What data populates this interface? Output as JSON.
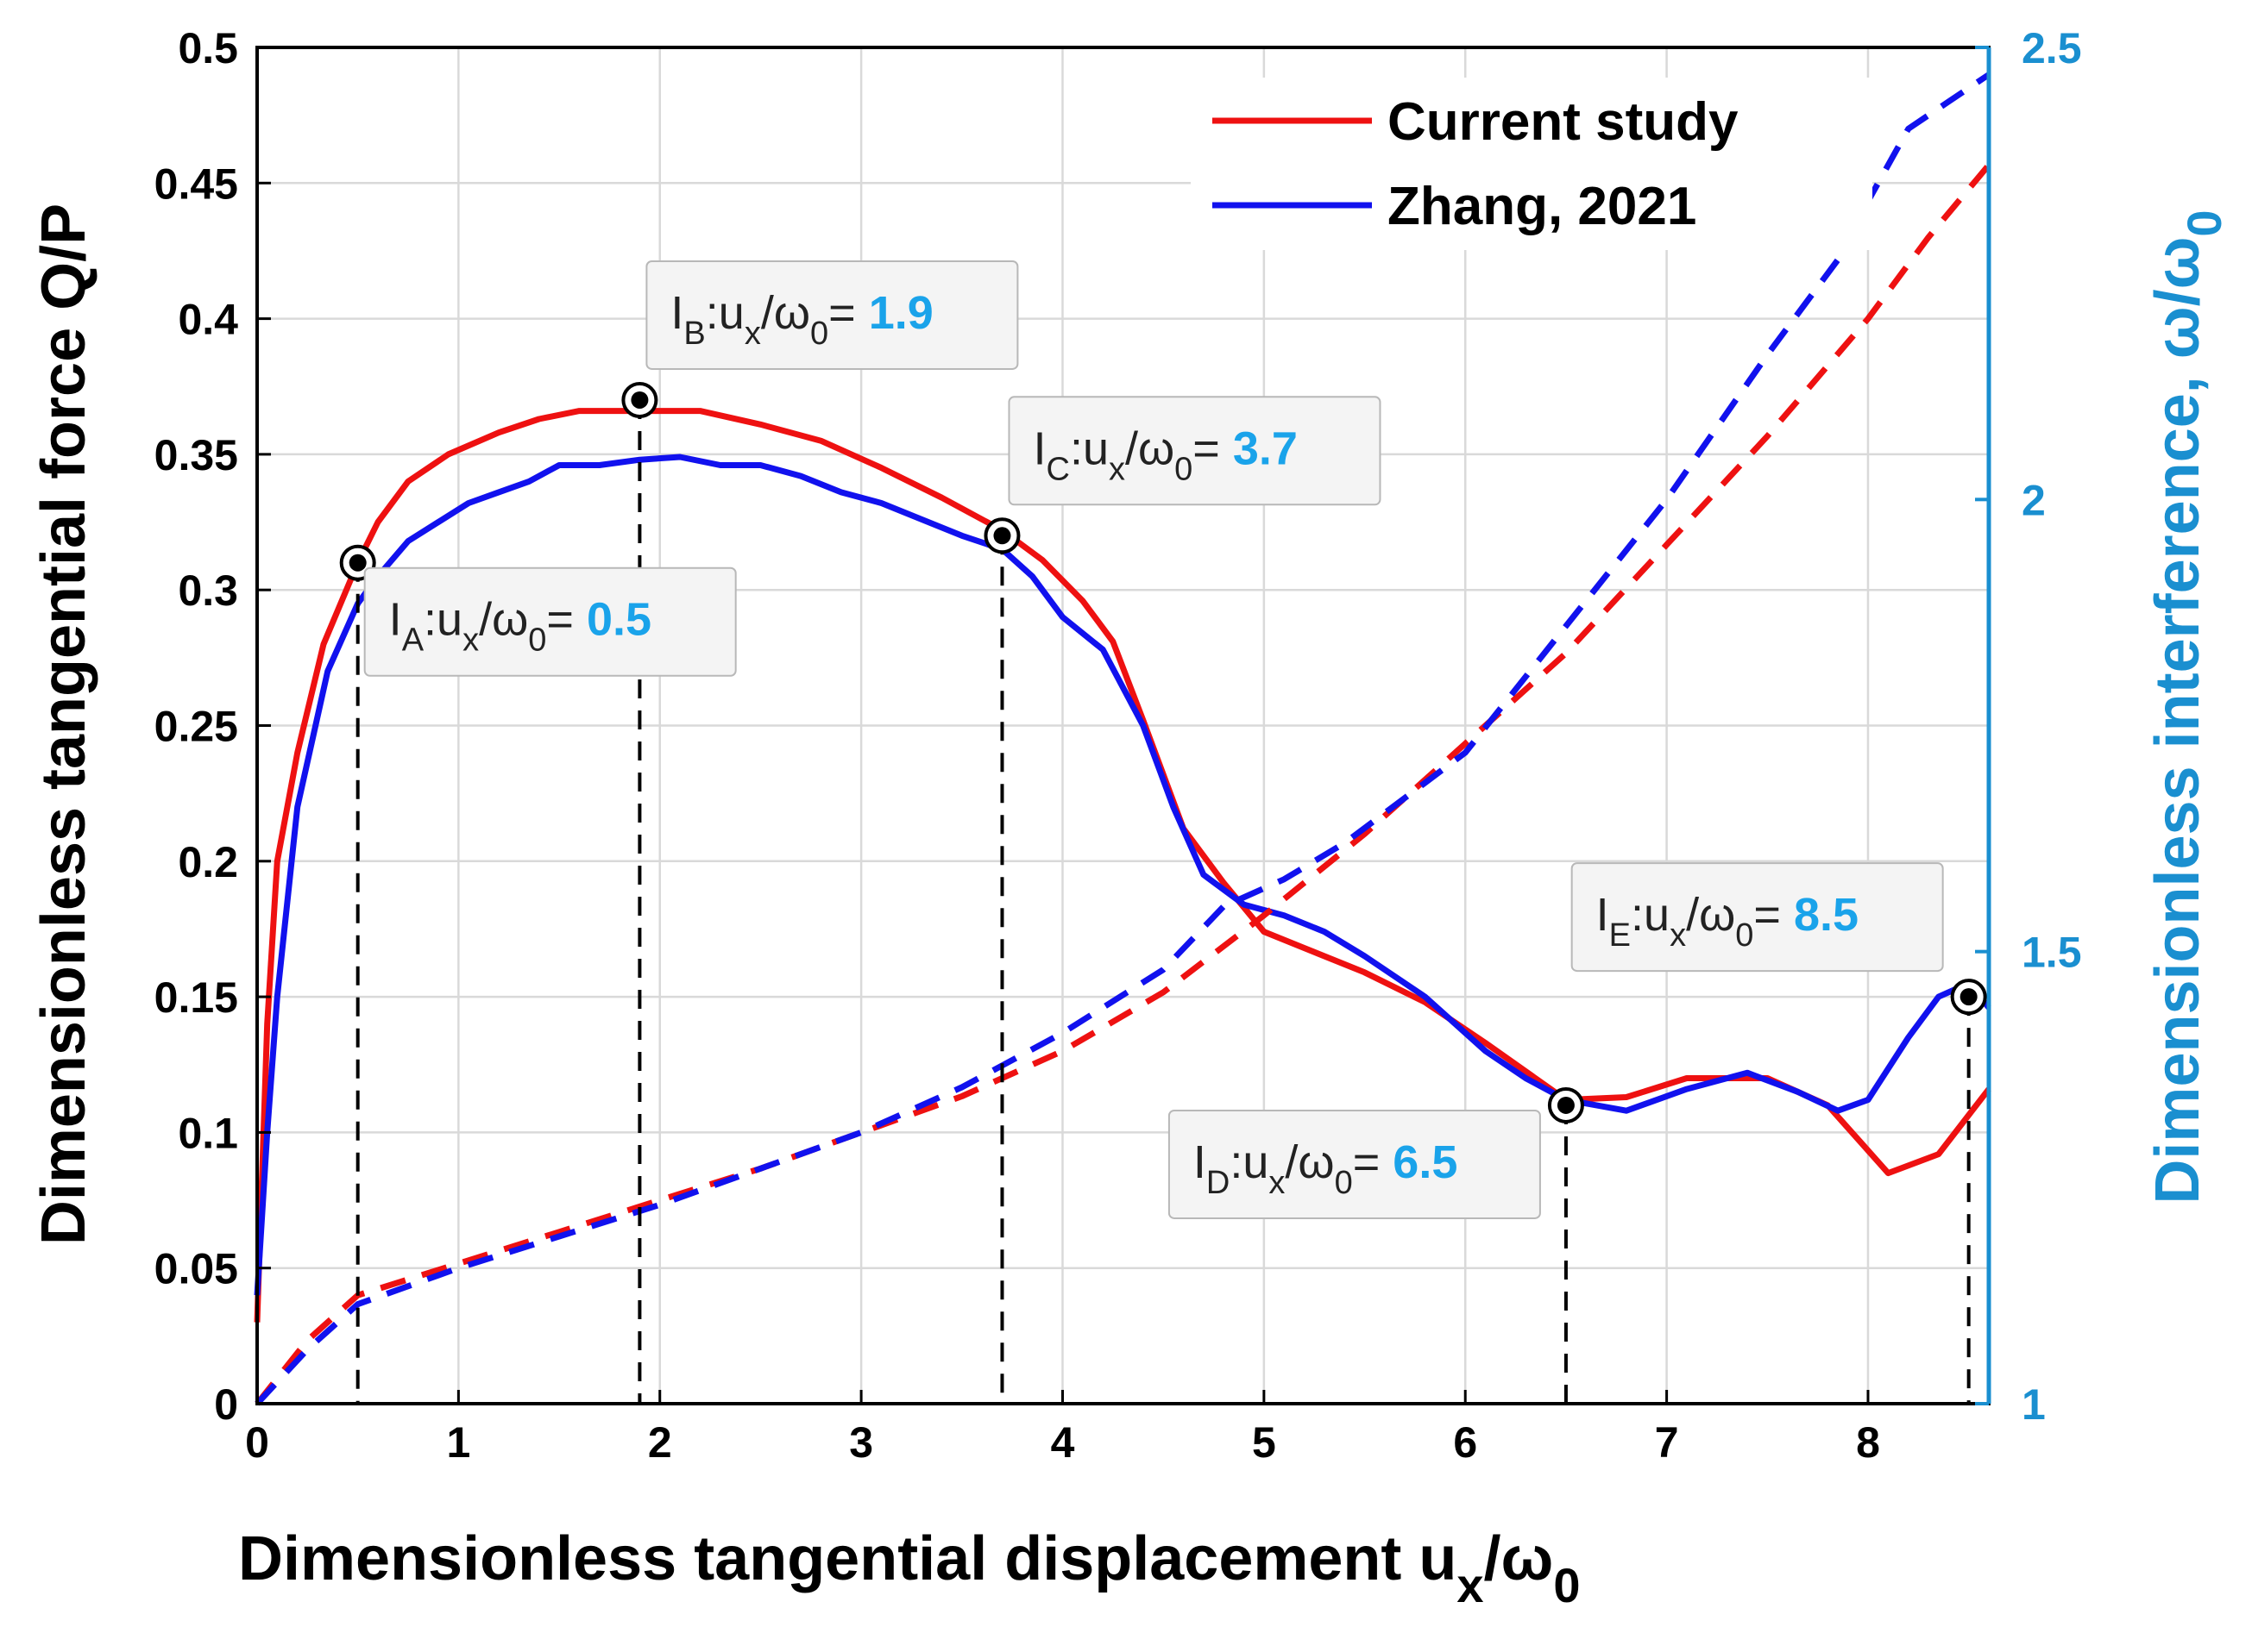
{
  "chart_data": {
    "type": "line",
    "xlabel": "Dimensionless tangential displacement u",
    "xlabel_sub": "x",
    "xlabel_tail": "/ω",
    "xlabel_tail_sub": "0",
    "ylabel": "Dimensionless tangential force Q/P",
    "y2label": "Dimensionless interference, ω/ω",
    "y2label_sub": "0",
    "xlim": [
      0,
      8.6
    ],
    "ylim": [
      0,
      0.5
    ],
    "y2lim": [
      1,
      2.5
    ],
    "xticks": [
      "0",
      "1",
      "2",
      "3",
      "4",
      "5",
      "6",
      "7",
      "8"
    ],
    "yticks": [
      "0",
      "0.05",
      "0.1",
      "0.15",
      "0.2",
      "0.25",
      "0.3",
      "0.35",
      "0.4",
      "0.45",
      "0.5"
    ],
    "y2ticks": [
      "1",
      "1.5",
      "2",
      "2.5"
    ],
    "grid": true,
    "colors": {
      "red": "#ee1111",
      "blue": "#1111ee",
      "right_axis": "#1a8fd0",
      "value": "#1aa3ea"
    },
    "legend": {
      "placement": "top-right",
      "entries": [
        "Current study",
        "Zhang, 2021"
      ]
    },
    "series": [
      {
        "name": "Current study",
        "axis": "left",
        "style": "solid",
        "color": "#ee1111",
        "x": [
          0,
          0.05,
          0.1,
          0.2,
          0.33,
          0.5,
          0.6,
          0.75,
          0.95,
          1.2,
          1.4,
          1.6,
          1.8,
          2.0,
          2.2,
          2.5,
          2.8,
          3.1,
          3.4,
          3.7,
          3.9,
          4.1,
          4.25,
          4.4,
          4.6,
          4.8,
          5.0,
          5.2,
          5.5,
          5.8,
          6.1,
          6.5,
          6.8,
          7.1,
          7.5,
          7.8,
          8.1,
          8.35,
          8.6
        ],
        "values": [
          0.03,
          0.14,
          0.2,
          0.24,
          0.28,
          0.31,
          0.325,
          0.34,
          0.35,
          0.358,
          0.363,
          0.366,
          0.366,
          0.366,
          0.366,
          0.361,
          0.355,
          0.345,
          0.334,
          0.322,
          0.311,
          0.296,
          0.281,
          0.252,
          0.212,
          0.192,
          0.174,
          0.168,
          0.159,
          0.148,
          0.133,
          0.112,
          0.113,
          0.12,
          0.12,
          0.11,
          0.085,
          0.092,
          0.116
        ]
      },
      {
        "name": "Zhang, 2021",
        "axis": "left",
        "style": "solid",
        "color": "#1111ee",
        "x": [
          0,
          0.05,
          0.1,
          0.2,
          0.35,
          0.5,
          0.6,
          0.75,
          0.9,
          1.05,
          1.2,
          1.35,
          1.5,
          1.7,
          1.9,
          2.1,
          2.3,
          2.5,
          2.7,
          2.9,
          3.1,
          3.3,
          3.5,
          3.7,
          3.85,
          4.0,
          4.2,
          4.4,
          4.55,
          4.7,
          4.9,
          5.1,
          5.3,
          5.5,
          5.8,
          6.1,
          6.3,
          6.5,
          6.8,
          7.1,
          7.4,
          7.65,
          7.85,
          8.0,
          8.2,
          8.35,
          8.5,
          8.6
        ],
        "values": [
          0.04,
          0.1,
          0.15,
          0.22,
          0.27,
          0.295,
          0.305,
          0.318,
          0.325,
          0.332,
          0.336,
          0.34,
          0.346,
          0.346,
          0.348,
          0.349,
          0.346,
          0.346,
          0.342,
          0.336,
          0.332,
          0.326,
          0.32,
          0.315,
          0.305,
          0.29,
          0.278,
          0.25,
          0.22,
          0.195,
          0.184,
          0.18,
          0.174,
          0.165,
          0.15,
          0.13,
          0.12,
          0.112,
          0.108,
          0.116,
          0.122,
          0.115,
          0.108,
          0.112,
          0.135,
          0.15,
          0.155,
          0.146
        ]
      },
      {
        "name": "Current study interference",
        "axis": "right",
        "style": "dashed",
        "color": "#ee1111",
        "x": [
          0,
          0.25,
          0.5,
          1.0,
          1.5,
          2.0,
          2.5,
          3.0,
          3.5,
          4.0,
          4.5,
          5.0,
          5.5,
          6.0,
          6.5,
          7.0,
          7.5,
          8.0,
          8.3,
          8.6
        ],
        "values": [
          1.0,
          1.07,
          1.12,
          1.155,
          1.19,
          1.225,
          1.26,
          1.3,
          1.34,
          1.39,
          1.455,
          1.54,
          1.63,
          1.73,
          1.83,
          1.95,
          2.07,
          2.2,
          2.29,
          2.37
        ]
      },
      {
        "name": "Zhang, 2021 interference",
        "axis": "right",
        "style": "dashed",
        "color": "#1111ee",
        "x": [
          0,
          0.25,
          0.5,
          1.0,
          1.5,
          2.0,
          2.5,
          3.0,
          3.5,
          4.0,
          4.5,
          4.8,
          5.1,
          5.4,
          5.7,
          6.0,
          6.5,
          7.0,
          7.5,
          7.9,
          8.0,
          8.2,
          8.4,
          8.6
        ],
        "values": [
          1.0,
          1.06,
          1.11,
          1.15,
          1.185,
          1.22,
          1.26,
          1.3,
          1.35,
          1.41,
          1.48,
          1.55,
          1.58,
          1.62,
          1.67,
          1.72,
          1.86,
          2.0,
          2.16,
          2.28,
          2.33,
          2.41,
          2.44,
          2.47
        ]
      }
    ],
    "markers": [
      {
        "label": "I",
        "sub": "A",
        "mid": ":u",
        "mid_sub": "x",
        "tail": "/ω",
        "tail_sub": "0",
        "eq": "= ",
        "value": "0.5",
        "x": 0.5,
        "y": 0.31,
        "box_side": "below-right"
      },
      {
        "label": "I",
        "sub": "B",
        "mid": ":u",
        "mid_sub": "x",
        "tail": "/ω",
        "tail_sub": "0",
        "eq": "= ",
        "value": "1.9",
        "x": 1.9,
        "y": 0.37,
        "box_side": "above-right"
      },
      {
        "label": "I",
        "sub": "C",
        "mid": ":u",
        "mid_sub": "x",
        "tail": "/ω",
        "tail_sub": "0",
        "eq": "= ",
        "value": "3.7",
        "x": 3.7,
        "y": 0.32,
        "box_side": "above-right"
      },
      {
        "label": "I",
        "sub": "D",
        "mid": ":u",
        "mid_sub": "x",
        "tail": "/ω",
        "tail_sub": "0",
        "eq": "= ",
        "value": "6.5",
        "x": 6.5,
        "y": 0.11,
        "box_side": "below-left"
      },
      {
        "label": "I",
        "sub": "E",
        "mid": ":u",
        "mid_sub": "x",
        "tail": "/ω",
        "tail_sub": "0",
        "eq": "= ",
        "value": "8.5",
        "x": 8.5,
        "y": 0.15,
        "box_side": "above-left"
      }
    ]
  }
}
